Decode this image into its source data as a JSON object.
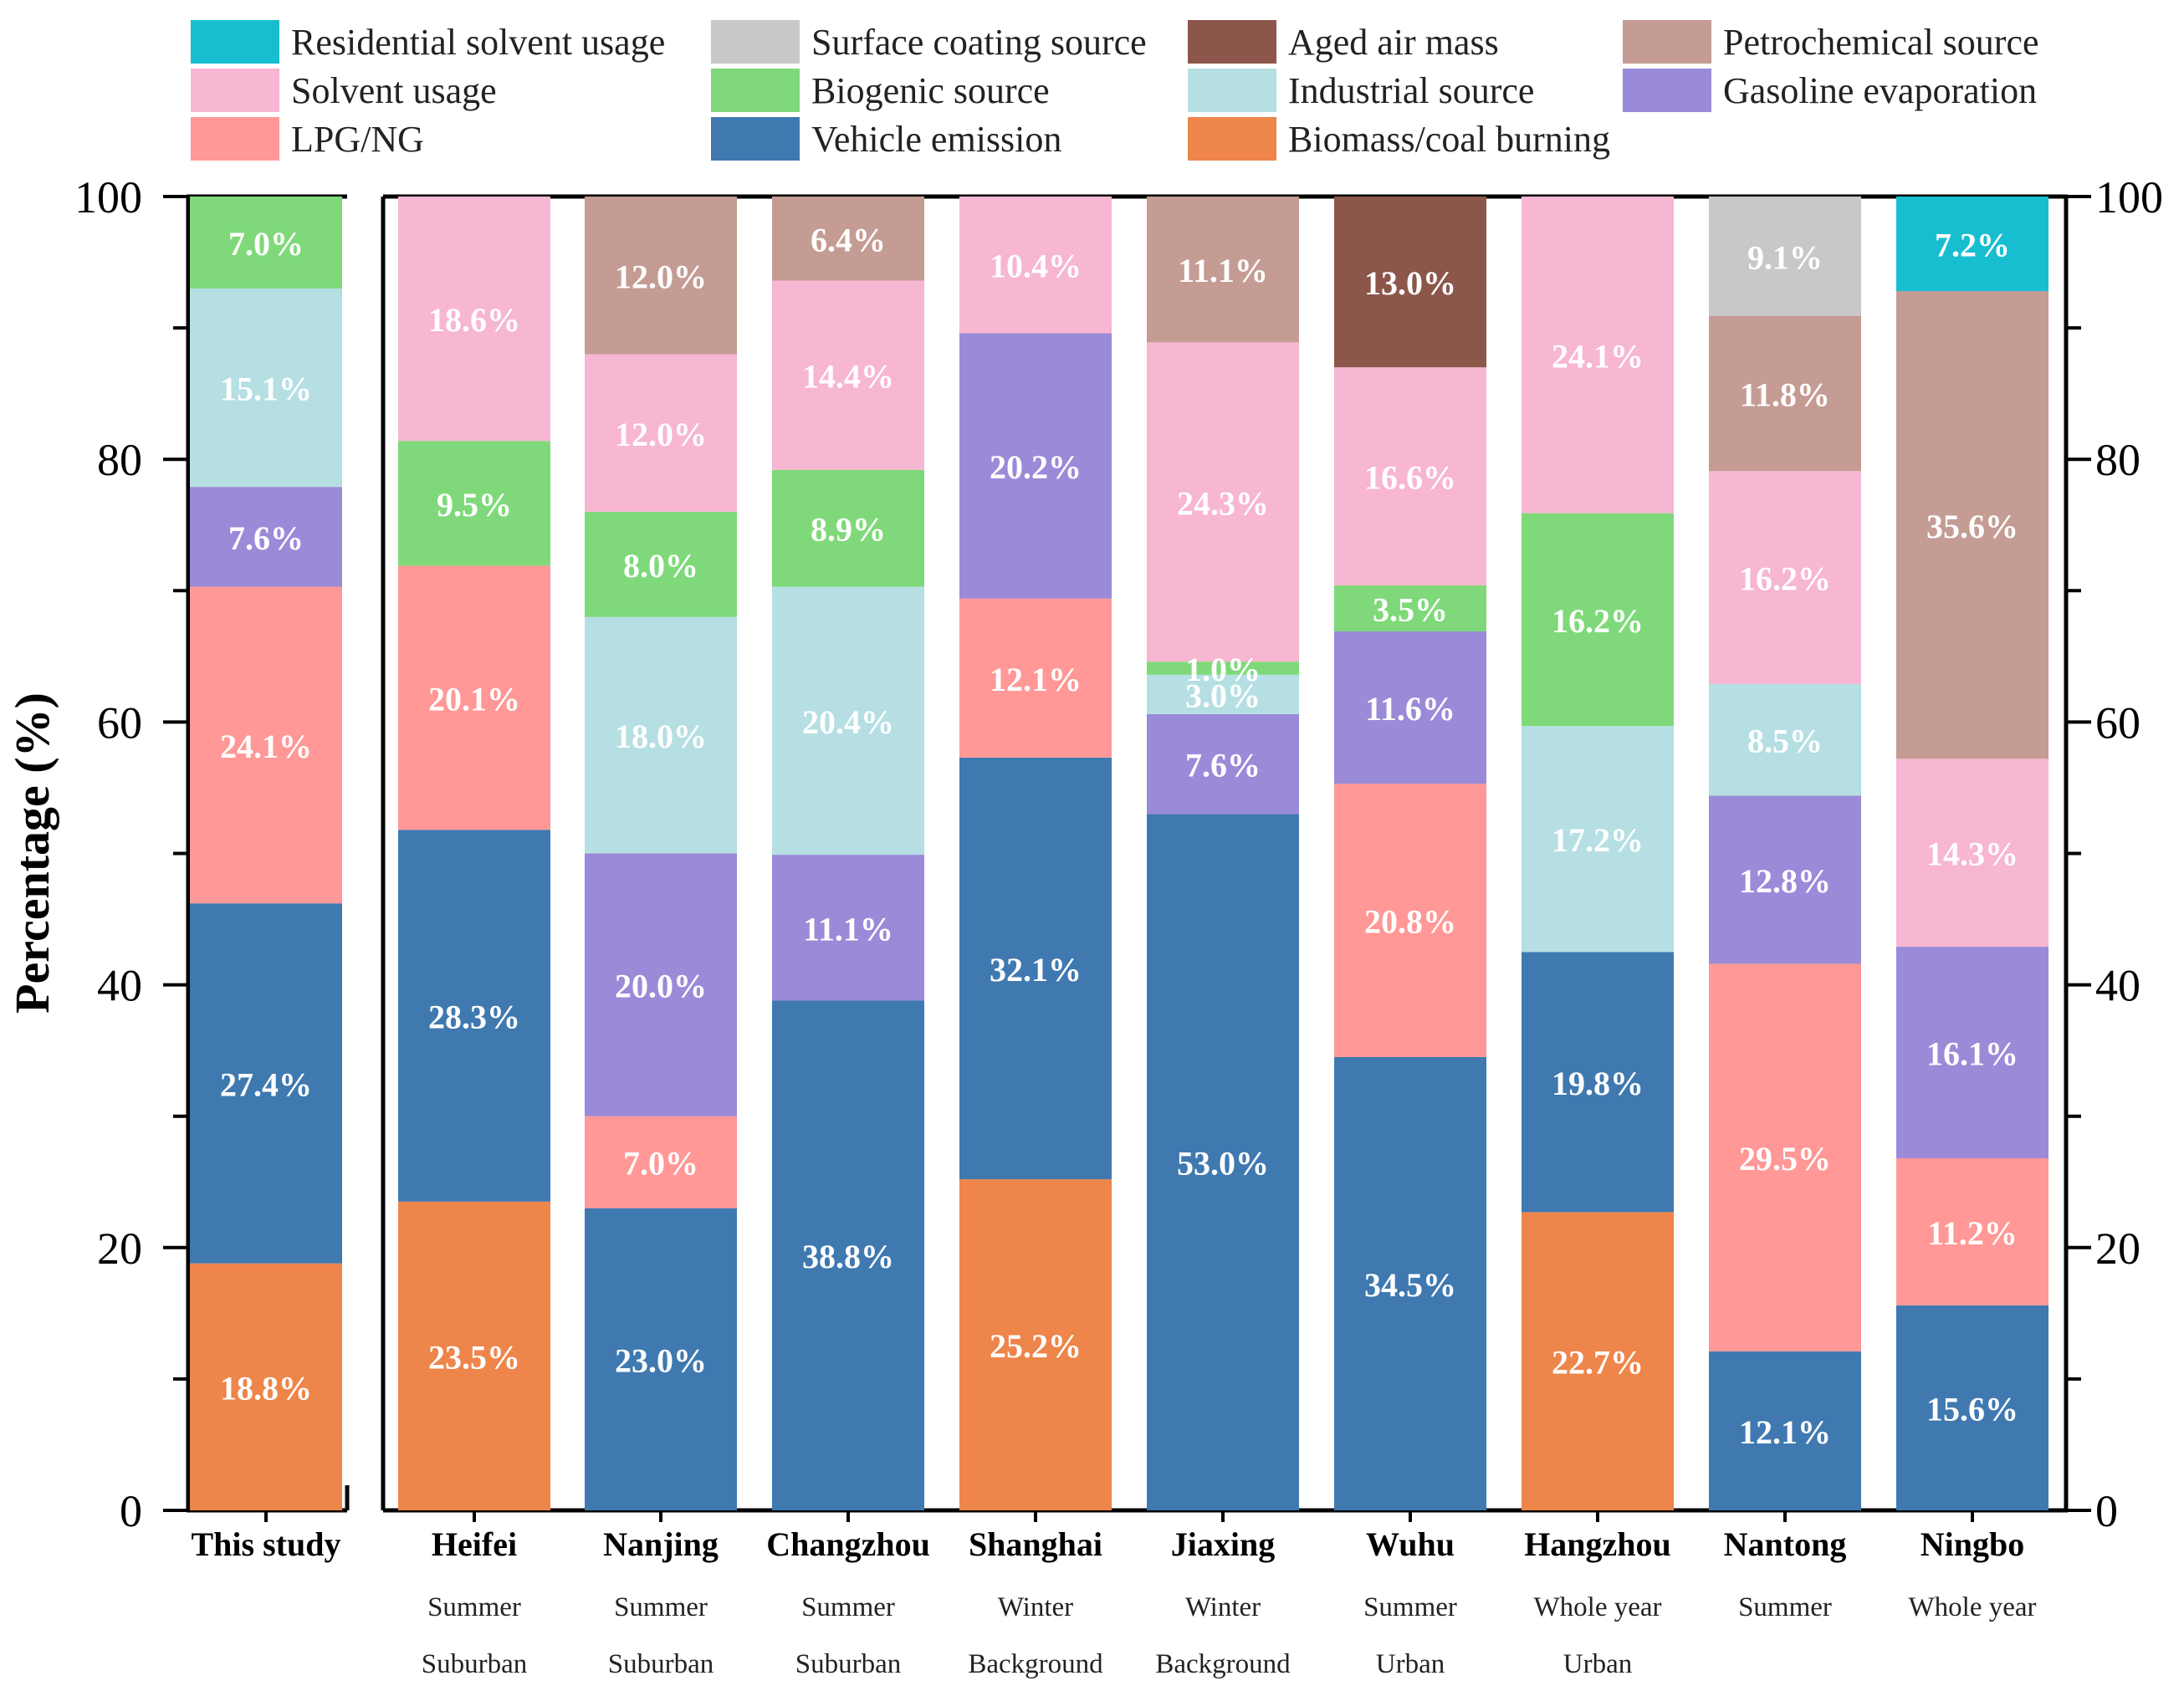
{
  "chart_data": {
    "type": "bar",
    "stacked": true,
    "ylabel": "Percentage (%)",
    "ylim": [
      0,
      100
    ],
    "yticks": [
      "0",
      "20",
      "40",
      "60",
      "80",
      "100"
    ],
    "legend_position": "top",
    "sources": [
      {
        "name": "Residential solvent usage",
        "color": "#17becf"
      },
      {
        "name": "Surface coating source",
        "color": "#c8c8c8"
      },
      {
        "name": "Aged air mass",
        "color": "#8c564b"
      },
      {
        "name": "Petrochemical source",
        "color": "#c49c94"
      },
      {
        "name": "Solvent usage",
        "color": "#f7b6d2"
      },
      {
        "name": "Biogenic source",
        "color": "#7fd97a"
      },
      {
        "name": "Industrial source",
        "color": "#b5dfe3"
      },
      {
        "name": "Gasoline evaporation",
        "color": "#9b8ad8"
      },
      {
        "name": "LPG/NG",
        "color": "#ff9896"
      },
      {
        "name": "Vehicle emission",
        "color": "#3f79b0"
      },
      {
        "name": "Biomass/coal burning",
        "color": "#ee854a"
      }
    ],
    "categories": [
      {
        "name": "This study",
        "season": "",
        "site": "",
        "segments": [
          {
            "source": "Biomass/coal burning",
            "value": 18.8,
            "label": "18.8%"
          },
          {
            "source": "Vehicle emission",
            "value": 27.4,
            "label": "27.4%"
          },
          {
            "source": "LPG/NG",
            "value": 24.1,
            "label": "24.1%"
          },
          {
            "source": "Gasoline evaporation",
            "value": 7.6,
            "label": "7.6%"
          },
          {
            "source": "Industrial source",
            "value": 15.1,
            "label": "15.1%"
          },
          {
            "source": "Biogenic source",
            "value": 7.0,
            "label": "7.0%"
          }
        ]
      },
      {
        "name": "Heifei",
        "season": "Summer",
        "site": "Suburban",
        "segments": [
          {
            "source": "Biomass/coal burning",
            "value": 23.5,
            "label": "23.5%"
          },
          {
            "source": "Vehicle emission",
            "value": 28.3,
            "label": "28.3%"
          },
          {
            "source": "LPG/NG",
            "value": 20.1,
            "label": "20.1%"
          },
          {
            "source": "Biogenic source",
            "value": 9.5,
            "label": "9.5%"
          },
          {
            "source": "Solvent usage",
            "value": 18.6,
            "label": "18.6%"
          }
        ]
      },
      {
        "name": "Nanjing",
        "season": "Summer",
        "site": "Suburban",
        "segments": [
          {
            "source": "Vehicle emission",
            "value": 23.0,
            "label": "23.0%"
          },
          {
            "source": "LPG/NG",
            "value": 7.0,
            "label": "7.0%"
          },
          {
            "source": "Gasoline evaporation",
            "value": 20.0,
            "label": "20.0%"
          },
          {
            "source": "Industrial source",
            "value": 18.0,
            "label": "18.0%"
          },
          {
            "source": "Biogenic source",
            "value": 8.0,
            "label": "8.0%"
          },
          {
            "source": "Solvent usage",
            "value": 12.0,
            "label": "12.0%"
          },
          {
            "source": "Petrochemical source",
            "value": 12.0,
            "label": "12.0%"
          }
        ]
      },
      {
        "name": "Changzhou",
        "season": "Summer",
        "site": "Suburban",
        "segments": [
          {
            "source": "Vehicle emission",
            "value": 38.8,
            "label": "38.8%"
          },
          {
            "source": "Gasoline evaporation",
            "value": 11.1,
            "label": "11.1%"
          },
          {
            "source": "Industrial source",
            "value": 20.4,
            "label": "20.4%"
          },
          {
            "source": "Biogenic source",
            "value": 8.9,
            "label": "8.9%"
          },
          {
            "source": "Solvent usage",
            "value": 14.4,
            "label": "14.4%"
          },
          {
            "source": "Petrochemical source",
            "value": 6.4,
            "label": "6.4%"
          }
        ]
      },
      {
        "name": "Shanghai",
        "season": "Winter",
        "site": "Background",
        "segments": [
          {
            "source": "Biomass/coal burning",
            "value": 25.2,
            "label": "25.2%"
          },
          {
            "source": "Vehicle emission",
            "value": 32.1,
            "label": "32.1%"
          },
          {
            "source": "LPG/NG",
            "value": 12.1,
            "label": "12.1%"
          },
          {
            "source": "Gasoline evaporation",
            "value": 20.2,
            "label": "20.2%"
          },
          {
            "source": "Solvent usage",
            "value": 10.4,
            "label": "10.4%"
          }
        ]
      },
      {
        "name": "Jiaxing",
        "season": "Winter",
        "site": "Background",
        "segments": [
          {
            "source": "Vehicle emission",
            "value": 53.0,
            "label": "53.0%"
          },
          {
            "source": "Gasoline evaporation",
            "value": 7.6,
            "label": "7.6%"
          },
          {
            "source": "Industrial source",
            "value": 3.0,
            "label": "3.0%"
          },
          {
            "source": "Biogenic source",
            "value": 1.0,
            "label": "1.0%"
          },
          {
            "source": "Solvent usage",
            "value": 24.3,
            "label": "24.3%"
          },
          {
            "source": "Petrochemical source",
            "value": 11.1,
            "label": "11.1%"
          }
        ]
      },
      {
        "name": "Wuhu",
        "season": "Summer",
        "site": "Urban",
        "segments": [
          {
            "source": "Vehicle emission",
            "value": 34.5,
            "label": "34.5%"
          },
          {
            "source": "LPG/NG",
            "value": 20.8,
            "label": "20.8%"
          },
          {
            "source": "Gasoline evaporation",
            "value": 11.6,
            "label": "11.6%"
          },
          {
            "source": "Biogenic source",
            "value": 3.5,
            "label": "3.5%"
          },
          {
            "source": "Solvent usage",
            "value": 16.6,
            "label": "16.6%"
          },
          {
            "source": "Aged air mass",
            "value": 13.0,
            "label": "13.0%"
          }
        ]
      },
      {
        "name": "Hangzhou",
        "season": "Whole year",
        "site": "Urban",
        "segments": [
          {
            "source": "Biomass/coal burning",
            "value": 22.7,
            "label": "22.7%"
          },
          {
            "source": "Vehicle emission",
            "value": 19.8,
            "label": "19.8%"
          },
          {
            "source": "Industrial source",
            "value": 17.2,
            "label": "17.2%"
          },
          {
            "source": "Biogenic source",
            "value": 16.2,
            "label": "16.2%"
          },
          {
            "source": "Solvent usage",
            "value": 24.1,
            "label": "24.1%"
          }
        ]
      },
      {
        "name": "Nantong",
        "season": "Summer",
        "site": "",
        "segments": [
          {
            "source": "Vehicle emission",
            "value": 12.1,
            "label": "12.1%"
          },
          {
            "source": "LPG/NG",
            "value": 29.5,
            "label": "29.5%"
          },
          {
            "source": "Gasoline evaporation",
            "value": 12.8,
            "label": "12.8%"
          },
          {
            "source": "Industrial source",
            "value": 8.5,
            "label": "8.5%"
          },
          {
            "source": "Solvent usage",
            "value": 16.2,
            "label": "16.2%"
          },
          {
            "source": "Petrochemical source",
            "value": 11.8,
            "label": "11.8%"
          },
          {
            "source": "Surface coating source",
            "value": 9.1,
            "label": "9.1%"
          }
        ]
      },
      {
        "name": "Ningbo",
        "season": "Whole year",
        "site": "",
        "segments": [
          {
            "source": "Vehicle emission",
            "value": 15.6,
            "label": "15.6%"
          },
          {
            "source": "LPG/NG",
            "value": 11.2,
            "label": "11.2%"
          },
          {
            "source": "Gasoline evaporation",
            "value": 16.1,
            "label": "16.1%"
          },
          {
            "source": "Solvent usage",
            "value": 14.3,
            "label": "14.3%"
          },
          {
            "source": "Petrochemical source",
            "value": 35.6,
            "label": "35.6%"
          },
          {
            "source": "Residential solvent usage",
            "value": 7.2,
            "label": "7.2%"
          }
        ]
      }
    ]
  }
}
